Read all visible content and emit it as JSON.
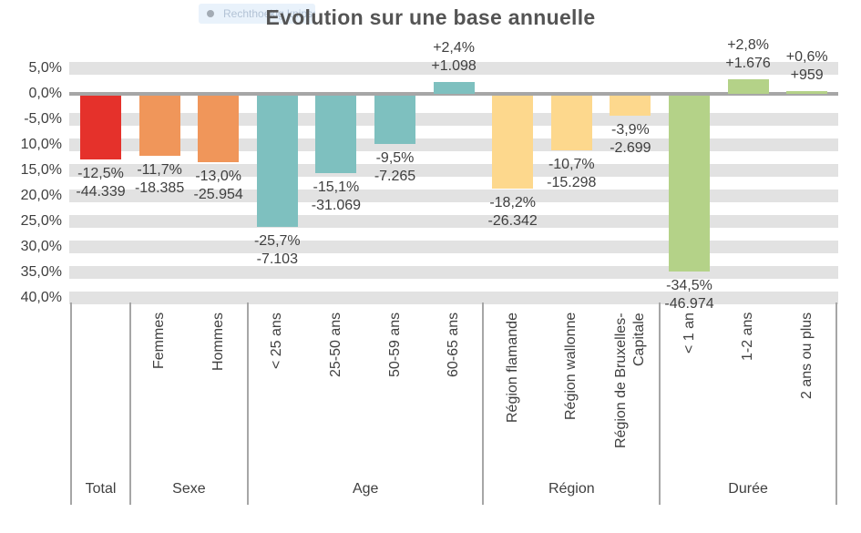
{
  "snip_overlay": {
    "label": "Rechthoekig knipsel"
  },
  "chart_data": {
    "type": "bar",
    "title": "Evolution sur une base annuelle",
    "ylabel": "",
    "unit": "percent",
    "ylim_percent": [
      -42.5,
      7.5
    ],
    "grid": "horizontal-stripes",
    "y_tick_labels_displayed": [
      "5,0%",
      "0,0%",
      "-5,0%",
      "10,0%",
      "15,0%",
      "20,0%",
      "25,0%",
      "30,0%",
      "35,0%",
      "40,0%"
    ],
    "y_tick_values_percent": [
      5,
      0,
      -5,
      -10,
      -15,
      -20,
      -25,
      -30,
      -35,
      -40
    ],
    "bars": [
      {
        "axis_label": "",
        "group": "Total",
        "pct": -12.5,
        "count": -44339,
        "pct_label": "-12,5%",
        "count_label": "-44.339"
      },
      {
        "axis_label": "Femmes",
        "group": "Sexe",
        "pct": -11.7,
        "count": -18385,
        "pct_label": "-11,7%",
        "count_label": "-18.385"
      },
      {
        "axis_label": "Hommes",
        "group": "Sexe",
        "pct": -13.0,
        "count": -25954,
        "pct_label": "-13,0%",
        "count_label": "-25.954"
      },
      {
        "axis_label": "< 25 ans",
        "group": "Age",
        "pct": -25.7,
        "count": -7103,
        "pct_label": "-25,7%",
        "count_label": "-7.103"
      },
      {
        "axis_label": "25-50 ans",
        "group": "Age",
        "pct": -15.1,
        "count": -31069,
        "pct_label": "-15,1%",
        "count_label": "-31.069"
      },
      {
        "axis_label": "50-59 ans",
        "group": "Age",
        "pct": -9.5,
        "count": -7265,
        "pct_label": "-9,5%",
        "count_label": "-7.265"
      },
      {
        "axis_label": "60-65 ans",
        "group": "Age",
        "pct": 2.4,
        "count": 1098,
        "pct_label": "+2,4%",
        "count_label": "+1.098"
      },
      {
        "axis_label": "Région flamande",
        "group": "Région",
        "pct": -18.2,
        "count": -26342,
        "pct_label": "-18,2%",
        "count_label": "-26.342"
      },
      {
        "axis_label": "Région wallonne",
        "group": "Région",
        "pct": -10.7,
        "count": -15298,
        "pct_label": "-10,7%",
        "count_label": "-15.298"
      },
      {
        "axis_label": "Région de Bruxelles-Capitale",
        "group": "Région",
        "pct": -3.9,
        "count": -2699,
        "pct_label": "-3,9%",
        "count_label": "-2.699"
      },
      {
        "axis_label": "< 1 an",
        "group": "Durée",
        "pct": -34.5,
        "count": -46974,
        "pct_label": "-34,5%",
        "count_label": "-46.974"
      },
      {
        "axis_label": "1-2 ans",
        "group": "Durée",
        "pct": 2.8,
        "count": 1676,
        "pct_label": "+2,8%",
        "count_label": "+1.676"
      },
      {
        "axis_label": "2 ans ou plus",
        "group": "Durée",
        "pct": 0.6,
        "count": 959,
        "pct_label": "+0,6%",
        "count_label": "+959"
      }
    ],
    "groups": [
      {
        "label": "Total",
        "from": 0,
        "to": 0
      },
      {
        "label": "Sexe",
        "from": 1,
        "to": 2
      },
      {
        "label": "Age",
        "from": 3,
        "to": 6
      },
      {
        "label": "Région",
        "from": 7,
        "to": 9
      },
      {
        "label": "Durée",
        "from": 10,
        "to": 12
      }
    ],
    "colors": {
      "Total": "#e5312b",
      "Sexe": "#f0965a",
      "Age": "#7ec0bf",
      "Région": "#fdd88d",
      "Durée": "#b4d288",
      "stripe": "#e2e2e2",
      "axis": "#a6a6a6",
      "text": "#3f3f3f",
      "title_text": "#545454"
    }
  }
}
